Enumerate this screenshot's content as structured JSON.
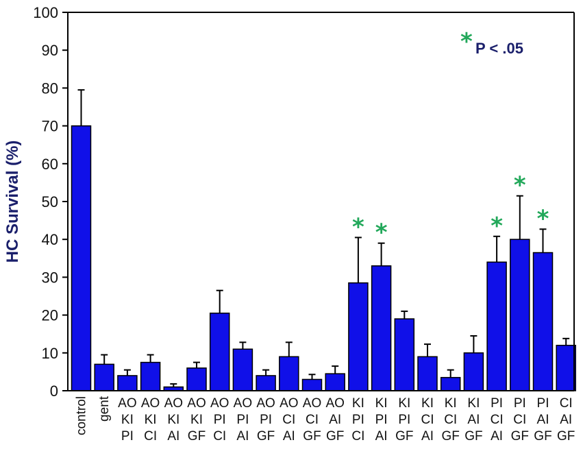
{
  "chart_data": {
    "type": "bar",
    "ylabel": "HC Survival (%)",
    "xlabel": "",
    "ylim": [
      0,
      100
    ],
    "yticks": [
      0,
      10,
      20,
      30,
      40,
      50,
      60,
      70,
      80,
      90,
      100
    ],
    "grid": false,
    "bar_color": "#1010e8",
    "significance_color": "#22a85a",
    "legend": {
      "symbol": "*",
      "text": "P < .05",
      "position": "top-right"
    },
    "categories": [
      [
        "control"
      ],
      [
        "gent"
      ],
      [
        "AO",
        "KI",
        "PI"
      ],
      [
        "AO",
        "KI",
        "CI"
      ],
      [
        "AO",
        "KI",
        "AI"
      ],
      [
        "AO",
        "KI",
        "GF"
      ],
      [
        "AO",
        "PI",
        "CI"
      ],
      [
        "AO",
        "PI",
        "AI"
      ],
      [
        "AO",
        "PI",
        "GF"
      ],
      [
        "AO",
        "CI",
        "AI"
      ],
      [
        "AO",
        "CI",
        "GF"
      ],
      [
        "AO",
        "AI",
        "GF"
      ],
      [
        "KI",
        "PI",
        "CI"
      ],
      [
        "KI",
        "PI",
        "AI"
      ],
      [
        "KI",
        "PI",
        "GF"
      ],
      [
        "KI",
        "CI",
        "AI"
      ],
      [
        "KI",
        "CI",
        "GF"
      ],
      [
        "KI",
        "AI",
        "GF"
      ],
      [
        "PI",
        "CI",
        "AI"
      ],
      [
        "PI",
        "CI",
        "GF"
      ],
      [
        "PI",
        "AI",
        "GF"
      ],
      [
        "CI",
        "AI",
        "GF"
      ]
    ],
    "values": [
      70,
      7,
      4,
      7.5,
      1,
      6,
      20.5,
      11,
      4,
      9,
      3,
      4.5,
      28.5,
      33,
      19,
      9,
      3.5,
      10,
      34,
      40,
      36.5,
      12
    ],
    "error": [
      9.5,
      2.5,
      1.5,
      2,
      0.8,
      1.5,
      6,
      1.8,
      1.5,
      3.8,
      1.3,
      2,
      12,
      6,
      2,
      3.3,
      2,
      4.5,
      6.8,
      11.5,
      6.2,
      1.8
    ],
    "significant": [
      false,
      false,
      false,
      false,
      false,
      false,
      false,
      false,
      false,
      false,
      false,
      false,
      true,
      true,
      false,
      false,
      false,
      false,
      true,
      true,
      true,
      false
    ]
  }
}
